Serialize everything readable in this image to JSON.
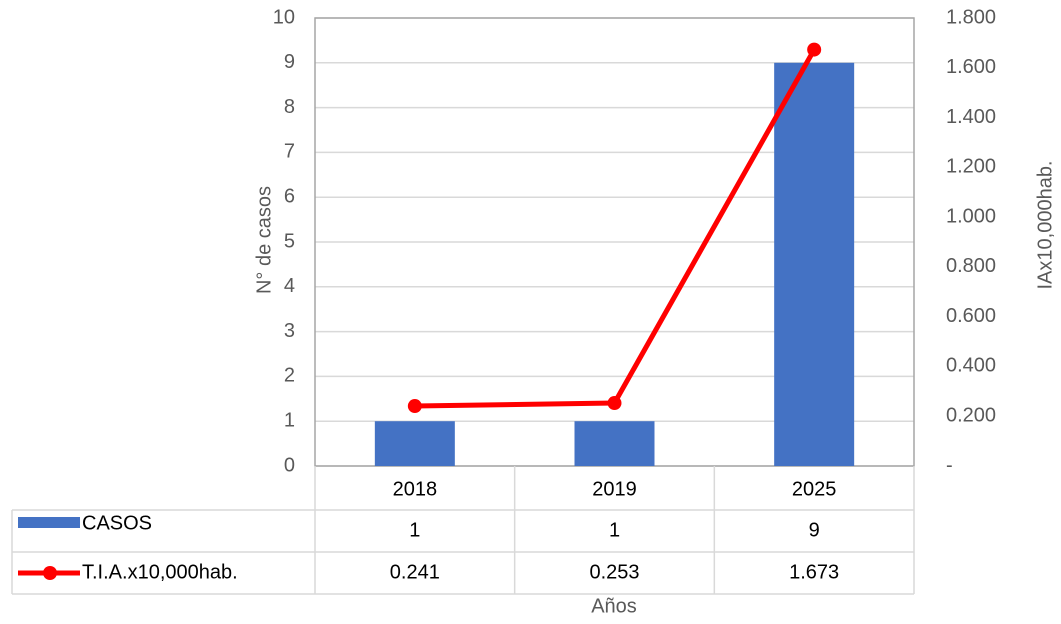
{
  "chart_data": {
    "type": "bar_line",
    "categories": [
      "2018",
      "2019",
      "2025"
    ],
    "series": [
      {
        "name": "CASOS",
        "color": "#4472c4",
        "values": [
          1,
          1,
          9
        ]
      },
      {
        "name": "T.I.A.x10,000hab.",
        "color": "#ff0000",
        "axis": "y2",
        "values": [
          0.241,
          0.253,
          1.673
        ]
      }
    ],
    "ylabel": "N° de casos",
    "y2label": "IAx10,000hab.",
    "xlabel": "Años",
    "ylim": [
      0,
      10
    ],
    "yticks": [
      0,
      1,
      2,
      3,
      4,
      5,
      6,
      7,
      8,
      9,
      10
    ],
    "y2lim": [
      0,
      1.8
    ],
    "y2ticks": [
      {
        "value": 0,
        "label": "-"
      },
      {
        "value": 0.2,
        "label": "0.200"
      },
      {
        "value": 0.4,
        "label": "0.400"
      },
      {
        "value": 0.6,
        "label": "0.600"
      },
      {
        "value": 0.8,
        "label": "0.800"
      },
      {
        "value": 1.0,
        "label": "1.000"
      },
      {
        "value": 1.2,
        "label": "1.200"
      },
      {
        "value": 1.4,
        "label": "1.400"
      },
      {
        "value": 1.6,
        "label": "1.600"
      },
      {
        "value": 1.8,
        "label": "1.800"
      }
    ],
    "grid": true
  }
}
